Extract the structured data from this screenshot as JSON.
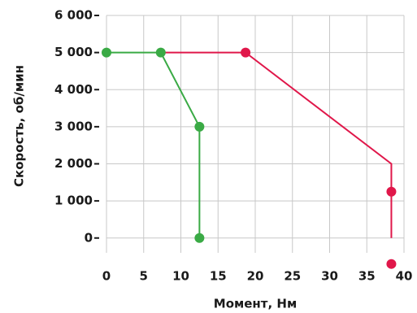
{
  "chart_data": {
    "type": "line",
    "xlabel": "Момент, Нм",
    "ylabel": "Скорость, об/мин",
    "xlim": [
      0,
      40
    ],
    "xticks": [
      0,
      5,
      10,
      15,
      20,
      25,
      30,
      35,
      40
    ],
    "ylim": [
      -400,
      6000
    ],
    "yticks": [
      0,
      {
        "value": 1000,
        "label": "1 000"
      },
      {
        "value": 2000,
        "label": "2 000"
      },
      {
        "value": 3000,
        "label": "3 000"
      },
      {
        "value": 4000,
        "label": "4 000"
      },
      {
        "value": 5000,
        "label": "5 000"
      },
      {
        "value": 6000,
        "label": "6 000"
      }
    ],
    "grid": true,
    "series": [
      {
        "color": "#e0174a",
        "line": {
          "x": [
            7.3,
            18.7,
            38.3,
            38.3
          ],
          "values": [
            5000,
            5000,
            2000,
            0
          ]
        },
        "points": {
          "x": [
            18.7,
            38.3,
            38.3
          ],
          "values": [
            5000,
            1250,
            -700
          ]
        }
      },
      {
        "color": "#3aaa45",
        "line": {
          "x": [
            0,
            7.3,
            12.5,
            12.5
          ],
          "values": [
            5000,
            5000,
            3000,
            0
          ]
        },
        "points": {
          "x": [
            0,
            7.3,
            12.5,
            12.5
          ],
          "values": [
            5000,
            5000,
            3000,
            0
          ]
        }
      }
    ]
  }
}
